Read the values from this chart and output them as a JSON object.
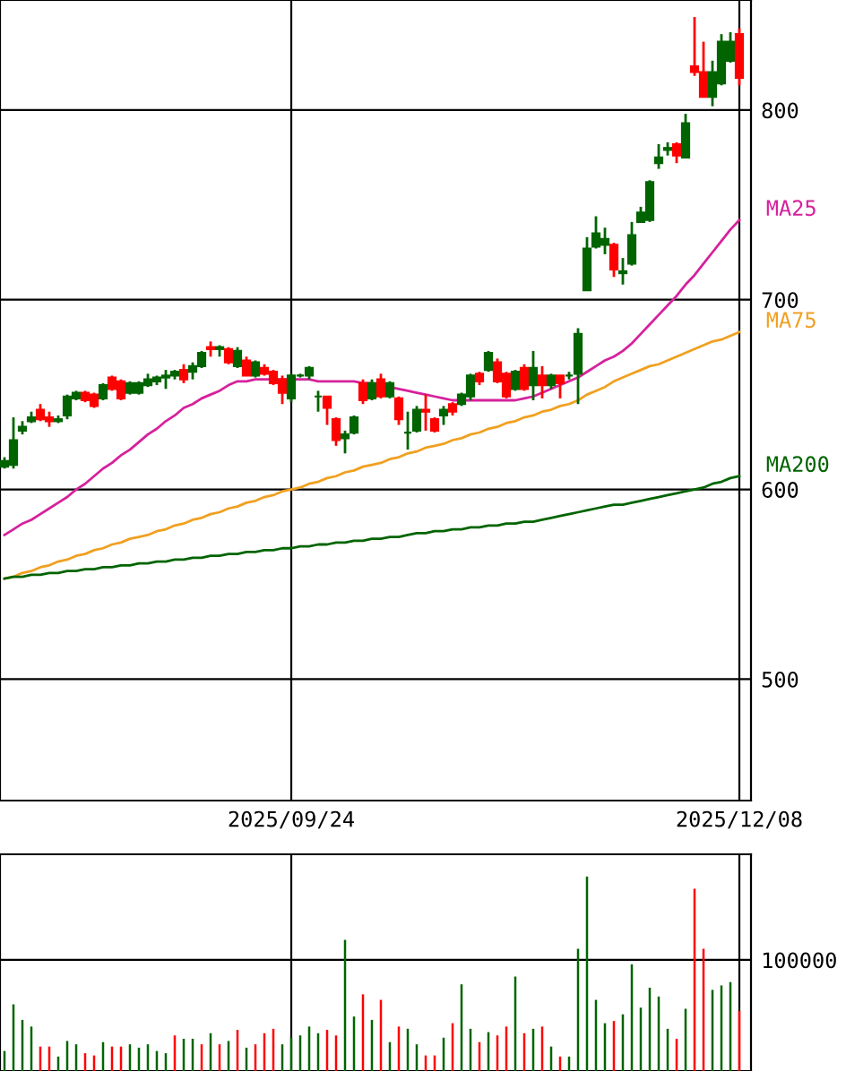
{
  "chart_data": [
    {
      "type": "candlestick",
      "categories": [
        null,
        null,
        null,
        null,
        null,
        null,
        null,
        null,
        null,
        null,
        null,
        null,
        null,
        null,
        null,
        null,
        null,
        null,
        null,
        null,
        null,
        null,
        null,
        null,
        null,
        null,
        null,
        null,
        null,
        null,
        null,
        null,
        "2025/09/24",
        null,
        null,
        null,
        null,
        null,
        null,
        null,
        null,
        null,
        null,
        null,
        null,
        null,
        null,
        null,
        null,
        null,
        null,
        null,
        null,
        null,
        null,
        null,
        null,
        null,
        null,
        null,
        null,
        null,
        null,
        null,
        null,
        null,
        null,
        null,
        null,
        null,
        null,
        null,
        null,
        null,
        null,
        null,
        null,
        null,
        null,
        null,
        null,
        null,
        "2025/12/08"
      ],
      "ohlc": [
        [
          612,
          617,
          611,
          615
        ],
        [
          613,
          638,
          611,
          626
        ],
        [
          631,
          636,
          629,
          633
        ],
        [
          636,
          641,
          635,
          638
        ],
        [
          642,
          645,
          636,
          637
        ],
        [
          638,
          641,
          633,
          636
        ],
        [
          636,
          639,
          635,
          637
        ],
        [
          639,
          650,
          637,
          649
        ],
        [
          648,
          652,
          647,
          651
        ],
        [
          651,
          652,
          646,
          647
        ],
        [
          650,
          651,
          643,
          644
        ],
        [
          648,
          656,
          647,
          655
        ],
        [
          659,
          660,
          652,
          653
        ],
        [
          657,
          658,
          647,
          648
        ],
        [
          651,
          657,
          650,
          656
        ],
        [
          651,
          657,
          650,
          656
        ],
        [
          655,
          661,
          654,
          658
        ],
        [
          657,
          660,
          655,
          659
        ],
        [
          659,
          663,
          653,
          660
        ],
        [
          660,
          663,
          658,
          662
        ],
        [
          663,
          666,
          656,
          658
        ],
        [
          662,
          667,
          658,
          665
        ],
        [
          665,
          673,
          664,
          672
        ],
        [
          675,
          678,
          670,
          674
        ],
        [
          674,
          676,
          670,
          675
        ],
        [
          674,
          675,
          666,
          667
        ],
        [
          665,
          675,
          664,
          673
        ],
        [
          668,
          670,
          660,
          660
        ],
        [
          660,
          668,
          659,
          667
        ],
        [
          664,
          666,
          660,
          661
        ],
        [
          662,
          663,
          655,
          656
        ],
        [
          658,
          660,
          645,
          651
        ],
        [
          648,
          661,
          646,
          660
        ],
        [
          660,
          661,
          659,
          660
        ],
        [
          660,
          665,
          658,
          664
        ],
        [
          649,
          652,
          641,
          649
        ],
        [
          649,
          649,
          634,
          643
        ],
        [
          637,
          638,
          623,
          626
        ],
        [
          627,
          631,
          619,
          629
        ],
        [
          630,
          639,
          629,
          638
        ],
        [
          656,
          658,
          645,
          647
        ],
        [
          648,
          658,
          647,
          656
        ],
        [
          658,
          661,
          648,
          649
        ],
        [
          649,
          657,
          648,
          656
        ],
        [
          648,
          649,
          634,
          637
        ],
        [
          630,
          641,
          621,
          630
        ],
        [
          631,
          644,
          630,
          642
        ],
        [
          642,
          650,
          631,
          641
        ],
        [
          637,
          638,
          630,
          631
        ],
        [
          639,
          644,
          634,
          642
        ],
        [
          645,
          646,
          639,
          641
        ],
        [
          645,
          651,
          644,
          650
        ],
        [
          649,
          661,
          647,
          660
        ],
        [
          661,
          662,
          655,
          657
        ],
        [
          663,
          673,
          662,
          672
        ],
        [
          667,
          669,
          656,
          657
        ],
        [
          661,
          662,
          648,
          649
        ],
        [
          653,
          663,
          652,
          662
        ],
        [
          664,
          666,
          652,
          653
        ],
        [
          655,
          673,
          647,
          664
        ],
        [
          660,
          665,
          648,
          655
        ],
        [
          655,
          661,
          653,
          660
        ],
        [
          660,
          660,
          648,
          656
        ],
        [
          660,
          662,
          658,
          660
        ],
        [
          661,
          685,
          645,
          682
        ],
        [
          705,
          733,
          705,
          727
        ],
        [
          728,
          744,
          727,
          735
        ],
        [
          729,
          738,
          724,
          732
        ],
        [
          729,
          730,
          712,
          716
        ],
        [
          714,
          722,
          708,
          715
        ],
        [
          719,
          741,
          718,
          734
        ],
        [
          741,
          749,
          741,
          746
        ],
        [
          742,
          763,
          741,
          762
        ],
        [
          772,
          782,
          769,
          775
        ],
        [
          779,
          783,
          776,
          780
        ],
        [
          782,
          783,
          772,
          776
        ],
        [
          775,
          798,
          775,
          793
        ],
        [
          823,
          849,
          818,
          820
        ],
        [
          820,
          836,
          807,
          807
        ],
        [
          807,
          826,
          802,
          820
        ],
        [
          814,
          840,
          813,
          836
        ],
        [
          826,
          841,
          825,
          836
        ],
        [
          840,
          843,
          813,
          817
        ]
      ],
      "colors": [
        "#006400",
        "#006400",
        "#006400",
        "#006400",
        "#ff0000",
        "#ff0000",
        "#006400",
        "#006400",
        "#006400",
        "#ff0000",
        "#ff0000",
        "#006400",
        "#ff0000",
        "#ff0000",
        "#006400",
        "#006400",
        "#006400",
        "#006400",
        "#006400",
        "#006400",
        "#ff0000",
        "#006400",
        "#006400",
        "#ff0000",
        "#006400",
        "#ff0000",
        "#006400",
        "#ff0000",
        "#006400",
        "#ff0000",
        "#ff0000",
        "#ff0000",
        "#006400",
        "#006400",
        "#006400",
        "#006400",
        "#ff0000",
        "#ff0000",
        "#006400",
        "#006400",
        "#ff0000",
        "#006400",
        "#ff0000",
        "#006400",
        "#ff0000",
        "#006400",
        "#006400",
        "#ff0000",
        "#ff0000",
        "#006400",
        "#ff0000",
        "#006400",
        "#006400",
        "#ff0000",
        "#006400",
        "#ff0000",
        "#ff0000",
        "#006400",
        "#ff0000",
        "#006400",
        "#ff0000",
        "#006400",
        "#ff0000",
        "#006400",
        "#006400",
        "#006400",
        "#006400",
        "#006400",
        "#ff0000",
        "#006400",
        "#006400",
        "#006400",
        "#006400",
        "#006400",
        "#006400",
        "#ff0000",
        "#006400",
        "#ff0000",
        "#ff0000",
        "#006400",
        "#006400",
        "#006400",
        "#ff0000"
      ],
      "series": [
        {
          "type": "line",
          "name": "MA25",
          "color": "#d6219c",
          "values": [
            576,
            579,
            582,
            584,
            587,
            590,
            593,
            596,
            600,
            603,
            607,
            611,
            614,
            618,
            621,
            625,
            629,
            632,
            636,
            639,
            643,
            645,
            648,
            650,
            652,
            655,
            657,
            657,
            658,
            658,
            658,
            658,
            658,
            658,
            658,
            657,
            657,
            657,
            657,
            657,
            656,
            656,
            655,
            654,
            653,
            652,
            651,
            650,
            649,
            648,
            647,
            647,
            647,
            647,
            647,
            647,
            647,
            647,
            648,
            649,
            651,
            653,
            655,
            657,
            659,
            662,
            665,
            668,
            670,
            673,
            677,
            682,
            687,
            692,
            697,
            702,
            708,
            713,
            719,
            725,
            731,
            737,
            742
          ]
        },
        {
          "type": "line",
          "name": "MA75",
          "color": "#f0a020",
          "values": [
            553,
            554,
            556,
            557,
            559,
            560,
            562,
            563,
            565,
            566,
            568,
            569,
            571,
            572,
            574,
            575,
            576,
            578,
            579,
            581,
            582,
            584,
            585,
            587,
            588,
            590,
            591,
            593,
            594,
            596,
            597,
            599,
            600,
            601,
            603,
            604,
            606,
            607,
            609,
            610,
            612,
            613,
            614,
            616,
            617,
            619,
            620,
            622,
            623,
            624,
            626,
            627,
            629,
            630,
            632,
            633,
            635,
            636,
            638,
            639,
            641,
            642,
            644,
            645,
            647,
            650,
            652,
            654,
            657,
            659,
            661,
            663,
            665,
            666,
            668,
            670,
            672,
            674,
            676,
            678,
            679,
            681,
            683
          ]
        },
        {
          "type": "line",
          "name": "MA200",
          "color": "#006400",
          "values": [
            553,
            554,
            554,
            555,
            555,
            556,
            556,
            557,
            557,
            558,
            558,
            559,
            559,
            560,
            560,
            561,
            561,
            562,
            562,
            563,
            563,
            564,
            564,
            565,
            565,
            566,
            566,
            567,
            567,
            568,
            568,
            569,
            569,
            570,
            570,
            571,
            571,
            572,
            572,
            573,
            573,
            574,
            574,
            575,
            575,
            576,
            577,
            577,
            578,
            578,
            579,
            579,
            580,
            580,
            581,
            581,
            582,
            582,
            583,
            583,
            584,
            585,
            586,
            587,
            588,
            589,
            590,
            591,
            592,
            592,
            593,
            594,
            595,
            596,
            597,
            598,
            599,
            600,
            601,
            603,
            604,
            606,
            607
          ]
        }
      ],
      "ylim": [
        436,
        858
      ],
      "yticks": [
        500,
        600,
        700,
        800
      ],
      "grid": true
    },
    {
      "type": "bar",
      "categories": [
        null,
        null,
        null,
        null,
        null,
        null,
        null,
        null,
        null,
        null,
        null,
        null,
        null,
        null,
        null,
        null,
        null,
        null,
        null,
        null,
        null,
        null,
        null,
        null,
        null,
        null,
        null,
        null,
        null,
        null,
        null,
        null,
        "2025/09/24",
        null,
        null,
        null,
        null,
        null,
        null,
        null,
        null,
        null,
        null,
        null,
        null,
        null,
        null,
        null,
        null,
        null,
        null,
        null,
        null,
        null,
        null,
        null,
        null,
        null,
        null,
        null,
        null,
        null,
        null,
        null,
        null,
        null,
        null,
        null,
        null,
        null,
        null,
        null,
        null,
        null,
        null,
        null,
        null,
        null,
        null,
        null,
        null,
        null,
        "2025/12/08"
      ],
      "values": [
        18000,
        60000,
        46000,
        40000,
        22000,
        22000,
        13000,
        27000,
        24000,
        16000,
        14000,
        26000,
        22000,
        22000,
        24000,
        21000,
        24000,
        18000,
        16000,
        32000,
        29000,
        29000,
        24000,
        34000,
        24000,
        27000,
        37000,
        21000,
        24000,
        34000,
        38000,
        24000,
        30000,
        32000,
        40000,
        34000,
        37000,
        32000,
        118000,
        49000,
        69000,
        46000,
        64000,
        26000,
        40000,
        38000,
        24000,
        14000,
        14000,
        30000,
        43000,
        78000,
        38000,
        26000,
        35000,
        32000,
        40000,
        85000,
        34000,
        38000,
        40000,
        22000,
        13000,
        13000,
        110000,
        175000,
        64000,
        43000,
        45000,
        51000,
        96000,
        57000,
        75000,
        67000,
        38000,
        29000,
        56000,
        164000,
        110000,
        73000,
        77000,
        80000,
        54000
      ],
      "colors": [
        "#006400",
        "#006400",
        "#006400",
        "#006400",
        "#ff0000",
        "#ff0000",
        "#006400",
        "#006400",
        "#006400",
        "#ff0000",
        "#ff0000",
        "#006400",
        "#ff0000",
        "#ff0000",
        "#006400",
        "#006400",
        "#006400",
        "#006400",
        "#006400",
        "#ff0000",
        "#006400",
        "#006400",
        "#ff0000",
        "#006400",
        "#ff0000",
        "#006400",
        "#ff0000",
        "#006400",
        "#ff0000",
        "#ff0000",
        "#ff0000",
        "#006400",
        "#006400",
        "#006400",
        "#006400",
        "#006400",
        "#ff0000",
        "#ff0000",
        "#006400",
        "#006400",
        "#ff0000",
        "#006400",
        "#ff0000",
        "#006400",
        "#ff0000",
        "#006400",
        "#006400",
        "#ff0000",
        "#ff0000",
        "#006400",
        "#ff0000",
        "#006400",
        "#006400",
        "#ff0000",
        "#006400",
        "#ff0000",
        "#ff0000",
        "#006400",
        "#ff0000",
        "#006400",
        "#ff0000",
        "#006400",
        "#ff0000",
        "#006400",
        "#006400",
        "#006400",
        "#006400",
        "#006400",
        "#ff0000",
        "#006400",
        "#006400",
        "#006400",
        "#006400",
        "#006400",
        "#006400",
        "#ff0000",
        "#006400",
        "#ff0000",
        "#ff0000",
        "#006400",
        "#006400",
        "#006400",
        "#ff0000"
      ],
      "ylim": [
        0,
        195000
      ],
      "yticks": [
        100000
      ],
      "tick_labels": "y",
      "grid": true
    }
  ]
}
